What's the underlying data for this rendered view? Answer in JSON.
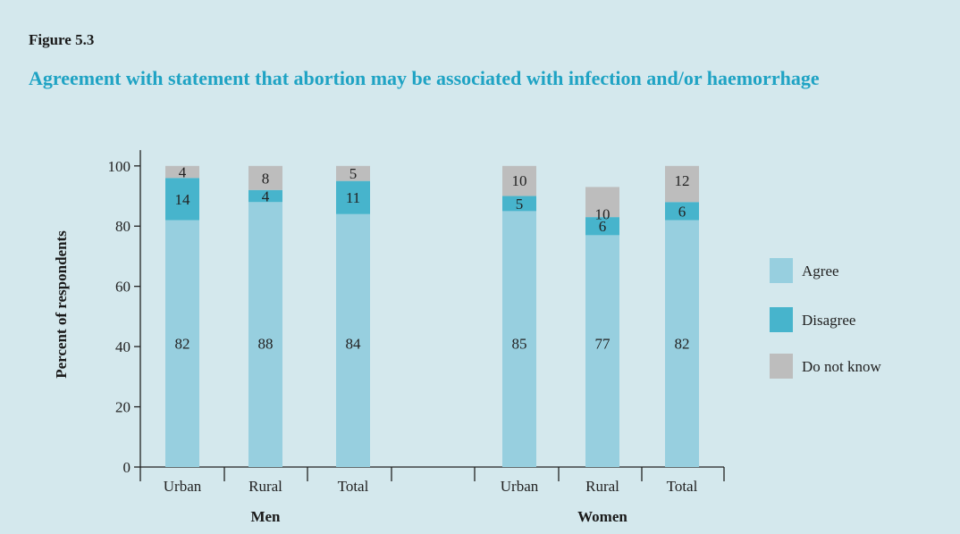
{
  "figure_label": "Figure 5.3",
  "title": "Agreement with statement that abortion may be associated with infection and/or haemorrhage",
  "colors": {
    "background": "#d4e8ed",
    "agree": "#97cfdf",
    "disagree": "#47b4cc",
    "dont_know": "#bdbdbd",
    "title": "#1fa3c4"
  },
  "chart_data": {
    "type": "bar",
    "stacked": true,
    "title": "Agreement with statement that abortion may be associated with infection and/or haemorrhage",
    "ylabel": "Percent of respondents",
    "xlabel": "",
    "ylim": [
      0,
      110
    ],
    "yticks": [
      0,
      20,
      40,
      60,
      80,
      100
    ],
    "groups": [
      "Men",
      "Women"
    ],
    "categories": [
      "Urban",
      "Rural",
      "Total",
      "Urban",
      "Rural",
      "Total"
    ],
    "category_groups": [
      "Men",
      "Men",
      "Men",
      "Women",
      "Women",
      "Women"
    ],
    "series": [
      {
        "name": "Agree",
        "values": [
          82,
          88,
          84,
          85,
          77,
          82
        ]
      },
      {
        "name": "Disagree",
        "values": [
          14,
          4,
          11,
          5,
          6,
          6
        ]
      },
      {
        "name": "Do not know",
        "values": [
          4,
          8,
          5,
          10,
          10,
          12
        ]
      }
    ],
    "legend_position": "right",
    "grid": false
  }
}
